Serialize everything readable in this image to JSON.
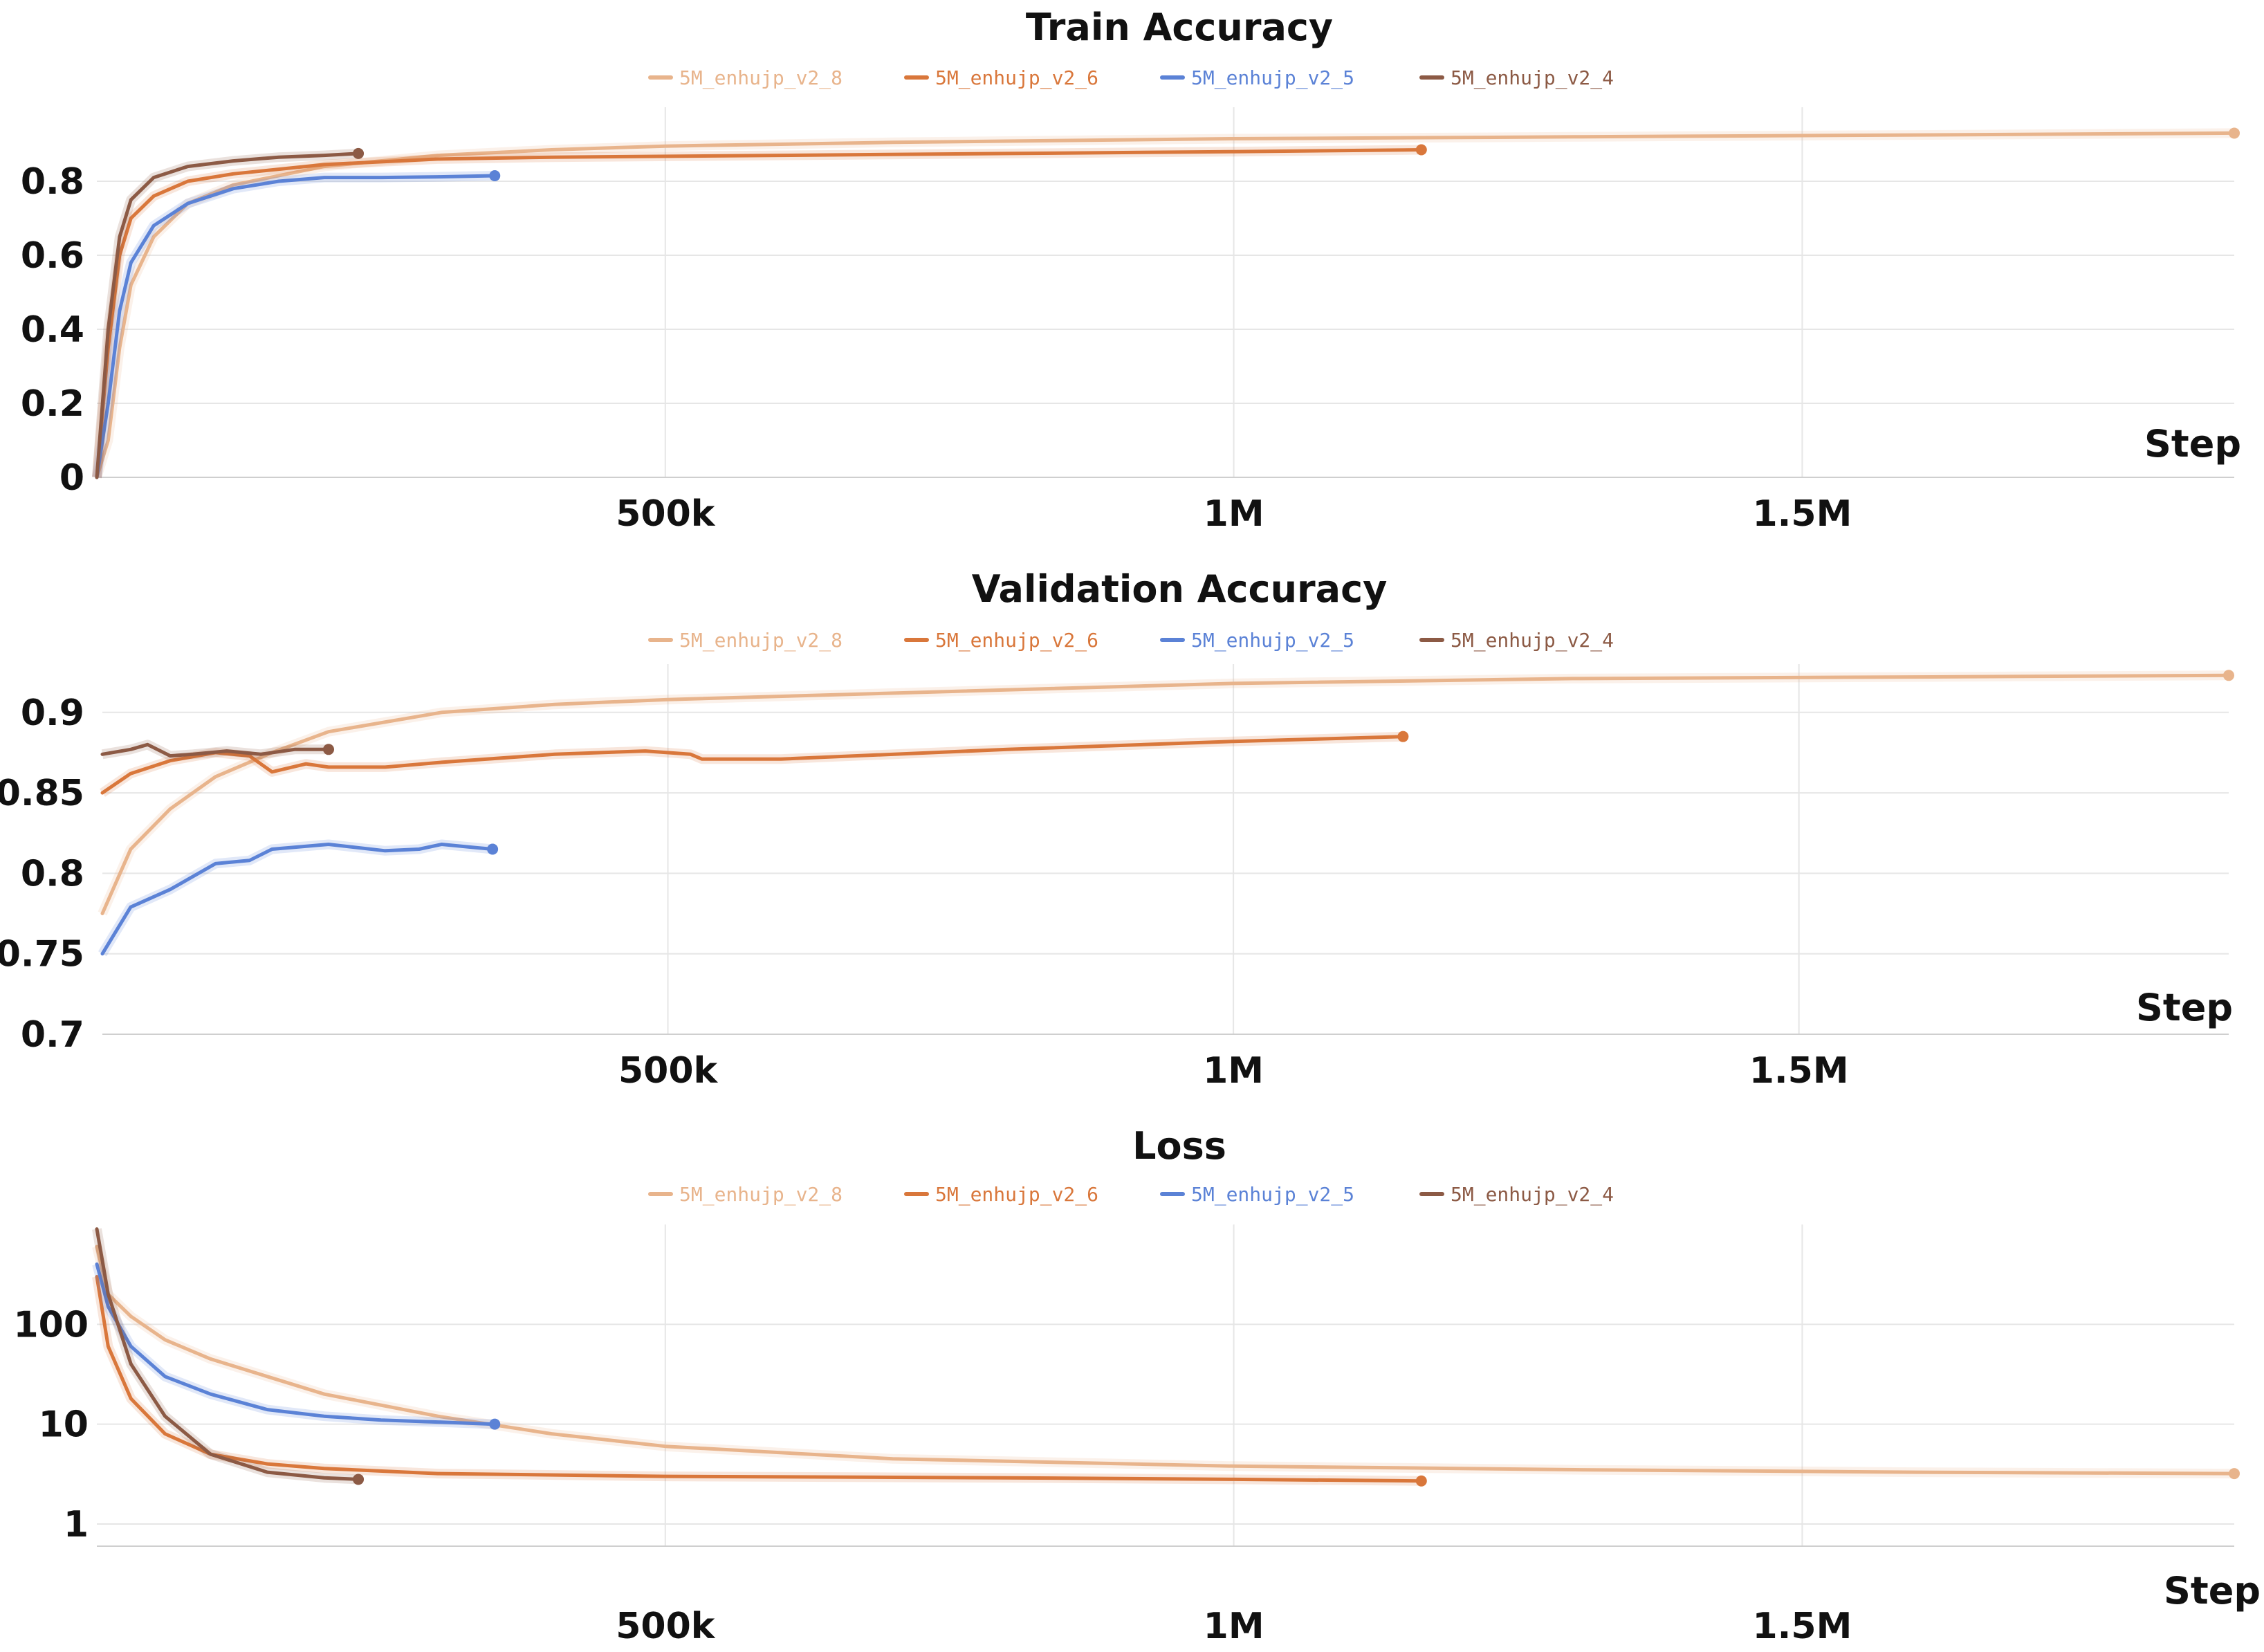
{
  "colors": {
    "5M_enhujp_v2_8": "#e8b48c",
    "5M_enhujp_v2_6": "#d9773b",
    "5M_enhujp_v2_5": "#5b82d6",
    "5M_enhujp_v2_4": "#8c5a45"
  },
  "chart_data": [
    {
      "type": "line",
      "title": "Train Accuracy",
      "xlabel": "Step",
      "ylabel": "",
      "xlim": [
        0,
        1880000
      ],
      "ylim": [
        0,
        1.0
      ],
      "yscale": "linear",
      "xticks": [
        500000,
        1000000,
        1500000
      ],
      "xtick_labels": [
        "500k",
        "1M",
        "1.5M"
      ],
      "yticks": [
        0,
        0.2,
        0.4,
        0.6,
        0.8
      ],
      "ytick_labels": [
        "0",
        "0.2",
        "0.4",
        "0.6",
        "0.8"
      ],
      "legend": [
        "5M_enhujp_v2_8",
        "5M_enhujp_v2_6",
        "5M_enhujp_v2_5",
        "5M_enhujp_v2_4"
      ],
      "series": [
        {
          "name": "5M_enhujp_v2_8",
          "x": [
            0,
            10000,
            20000,
            30000,
            50000,
            80000,
            120000,
            200000,
            300000,
            400000,
            500000,
            700000,
            1000000,
            1300000,
            1600000,
            1880000
          ],
          "y": [
            0,
            0.1,
            0.35,
            0.52,
            0.65,
            0.74,
            0.79,
            0.84,
            0.87,
            0.885,
            0.895,
            0.905,
            0.915,
            0.92,
            0.925,
            0.93
          ]
        },
        {
          "name": "5M_enhujp_v2_6",
          "x": [
            0,
            10000,
            20000,
            30000,
            50000,
            80000,
            120000,
            200000,
            300000,
            400000,
            600000,
            800000,
            1000000,
            1165000
          ],
          "y": [
            0,
            0.35,
            0.6,
            0.7,
            0.76,
            0.8,
            0.82,
            0.845,
            0.86,
            0.865,
            0.87,
            0.875,
            0.88,
            0.885
          ]
        },
        {
          "name": "5M_enhujp_v2_5",
          "x": [
            0,
            10000,
            20000,
            30000,
            50000,
            80000,
            120000,
            160000,
            200000,
            250000,
            300000,
            350000
          ],
          "y": [
            0,
            0.2,
            0.45,
            0.58,
            0.68,
            0.74,
            0.78,
            0.8,
            0.81,
            0.81,
            0.812,
            0.815
          ]
        },
        {
          "name": "5M_enhujp_v2_4",
          "x": [
            0,
            10000,
            20000,
            30000,
            50000,
            80000,
            120000,
            160000,
            200000,
            230000
          ],
          "y": [
            0,
            0.4,
            0.65,
            0.75,
            0.81,
            0.84,
            0.855,
            0.865,
            0.87,
            0.875
          ]
        }
      ]
    },
    {
      "type": "line",
      "title": "Validation Accuracy",
      "xlabel": "Step",
      "ylabel": "",
      "xlim": [
        0,
        1880000
      ],
      "ylim": [
        0.7,
        0.93
      ],
      "yscale": "linear",
      "xticks": [
        500000,
        1000000,
        1500000
      ],
      "xtick_labels": [
        "500k",
        "1M",
        "1.5M"
      ],
      "yticks": [
        0.7,
        0.75,
        0.8,
        0.85,
        0.9
      ],
      "ytick_labels": [
        "0.7",
        "0.75",
        "0.8",
        "0.85",
        "0.9"
      ],
      "legend": [
        "5M_enhujp_v2_8",
        "5M_enhujp_v2_6",
        "5M_enhujp_v2_5",
        "5M_enhujp_v2_4"
      ],
      "series": [
        {
          "name": "5M_enhujp_v2_8",
          "x": [
            0,
            25000,
            60000,
            100000,
            150000,
            200000,
            300000,
            400000,
            500000,
            700000,
            1000000,
            1300000,
            1600000,
            1880000
          ],
          "y": [
            0.775,
            0.815,
            0.84,
            0.86,
            0.875,
            0.888,
            0.9,
            0.905,
            0.908,
            0.912,
            0.918,
            0.921,
            0.922,
            0.923
          ]
        },
        {
          "name": "5M_enhujp_v2_6",
          "x": [
            0,
            25000,
            60000,
            100000,
            130000,
            150000,
            180000,
            200000,
            250000,
            300000,
            400000,
            480000,
            520000,
            530000,
            600000,
            800000,
            1000000,
            1150000
          ],
          "y": [
            0.85,
            0.862,
            0.87,
            0.875,
            0.873,
            0.863,
            0.868,
            0.866,
            0.866,
            0.869,
            0.874,
            0.876,
            0.874,
            0.871,
            0.871,
            0.877,
            0.882,
            0.885
          ]
        },
        {
          "name": "5M_enhujp_v2_5",
          "x": [
            0,
            25000,
            60000,
            100000,
            130000,
            150000,
            200000,
            250000,
            280000,
            300000,
            330000,
            345000
          ],
          "y": [
            0.75,
            0.779,
            0.79,
            0.806,
            0.808,
            0.815,
            0.818,
            0.814,
            0.815,
            0.818,
            0.816,
            0.815
          ]
        },
        {
          "name": "5M_enhujp_v2_4",
          "x": [
            0,
            25000,
            40000,
            60000,
            80000,
            110000,
            140000,
            170000,
            200000
          ],
          "y": [
            0.874,
            0.877,
            0.88,
            0.873,
            0.874,
            0.876,
            0.874,
            0.877,
            0.877
          ]
        }
      ]
    },
    {
      "type": "line",
      "title": "Loss",
      "xlabel": "Step",
      "ylabel": "",
      "xlim": [
        0,
        1880000
      ],
      "ylim": [
        0.6,
        1000
      ],
      "yscale": "log",
      "xticks": [
        500000,
        1000000,
        1500000
      ],
      "xtick_labels": [
        "500k",
        "1M",
        "1.5M"
      ],
      "yticks": [
        1,
        10,
        100
      ],
      "ytick_labels": [
        "1",
        "10",
        "100"
      ],
      "legend": [
        "5M_enhujp_v2_8",
        "5M_enhujp_v2_6",
        "5M_enhujp_v2_5",
        "5M_enhujp_v2_4"
      ],
      "series": [
        {
          "name": "5M_enhujp_v2_8",
          "x": [
            0,
            10000,
            30000,
            60000,
            100000,
            150000,
            200000,
            300000,
            400000,
            500000,
            700000,
            1000000,
            1300000,
            1600000,
            1880000
          ],
          "y": [
            600,
            200,
            120,
            70,
            45,
            30,
            20,
            12,
            8,
            6,
            4.5,
            3.8,
            3.5,
            3.3,
            3.2
          ]
        },
        {
          "name": "5M_enhujp_v2_6",
          "x": [
            0,
            10000,
            30000,
            60000,
            100000,
            150000,
            200000,
            300000,
            500000,
            800000,
            1000000,
            1165000
          ],
          "y": [
            300,
            60,
            18,
            8,
            5,
            4,
            3.6,
            3.2,
            3.0,
            2.9,
            2.8,
            2.7
          ]
        },
        {
          "name": "5M_enhujp_v2_5",
          "x": [
            0,
            10000,
            30000,
            60000,
            100000,
            150000,
            200000,
            250000,
            300000,
            350000
          ],
          "y": [
            400,
            150,
            60,
            30,
            20,
            14,
            12,
            11,
            10.5,
            10
          ]
        },
        {
          "name": "5M_enhujp_v2_4",
          "x": [
            0,
            10000,
            30000,
            60000,
            100000,
            150000,
            200000,
            230000
          ],
          "y": [
            900,
            200,
            40,
            12,
            5,
            3.3,
            2.9,
            2.8
          ]
        }
      ]
    }
  ]
}
